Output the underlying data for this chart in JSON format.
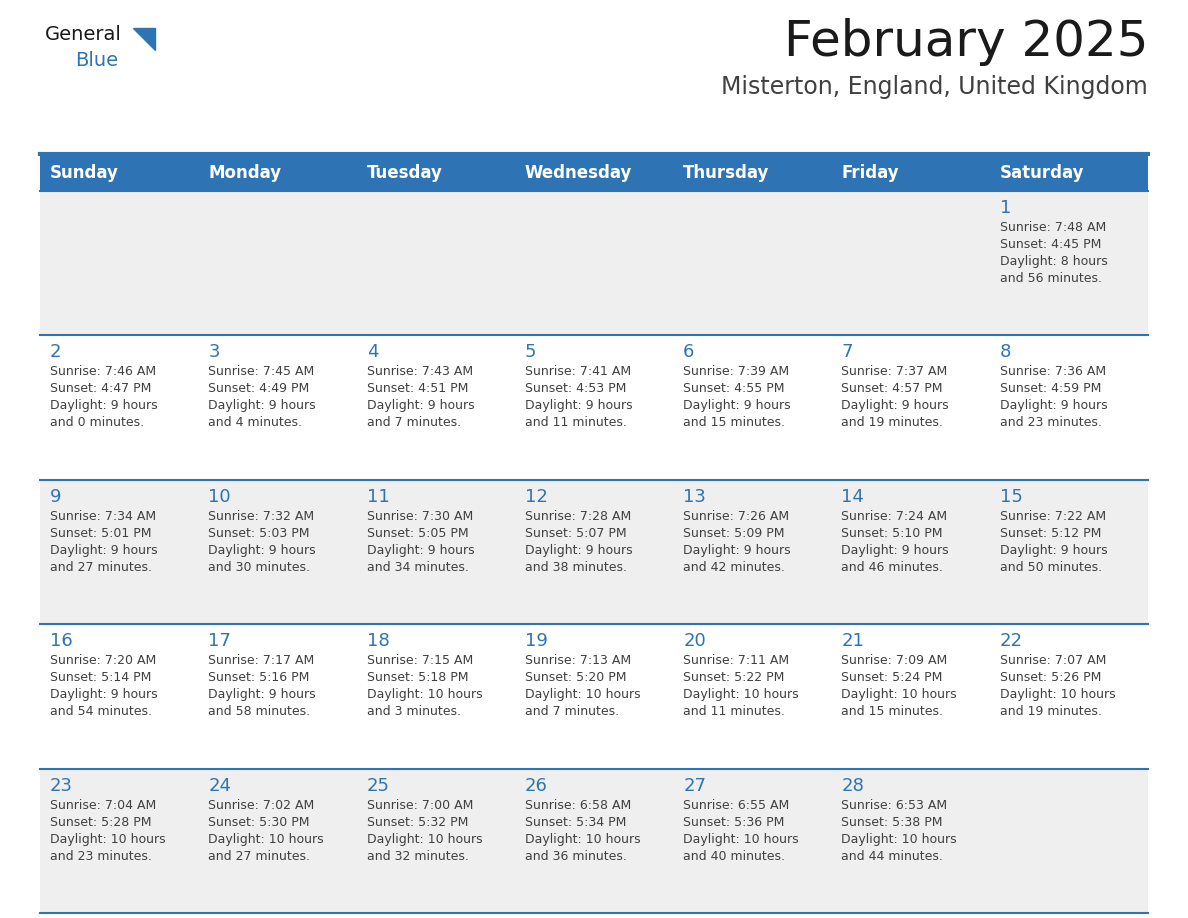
{
  "title": "February 2025",
  "subtitle": "Misterton, England, United Kingdom",
  "days_of_week": [
    "Sunday",
    "Monday",
    "Tuesday",
    "Wednesday",
    "Thursday",
    "Friday",
    "Saturday"
  ],
  "header_bg": "#2E74B5",
  "header_text": "#FFFFFF",
  "row_bg_odd": "#EFEFEF",
  "row_bg_even": "#FFFFFF",
  "cell_border": "#2E74B5",
  "day_number_color": "#2E74B5",
  "text_color": "#404040",
  "calendar_data": [
    [
      null,
      null,
      null,
      null,
      null,
      null,
      {
        "day": "1",
        "sunrise": "7:48 AM",
        "sunset": "4:45 PM",
        "daylight_h": "8 hours",
        "daylight_m": "56 minutes."
      }
    ],
    [
      {
        "day": "2",
        "sunrise": "7:46 AM",
        "sunset": "4:47 PM",
        "daylight_h": "9 hours",
        "daylight_m": "0 minutes."
      },
      {
        "day": "3",
        "sunrise": "7:45 AM",
        "sunset": "4:49 PM",
        "daylight_h": "9 hours",
        "daylight_m": "4 minutes."
      },
      {
        "day": "4",
        "sunrise": "7:43 AM",
        "sunset": "4:51 PM",
        "daylight_h": "9 hours",
        "daylight_m": "7 minutes."
      },
      {
        "day": "5",
        "sunrise": "7:41 AM",
        "sunset": "4:53 PM",
        "daylight_h": "9 hours",
        "daylight_m": "11 minutes."
      },
      {
        "day": "6",
        "sunrise": "7:39 AM",
        "sunset": "4:55 PM",
        "daylight_h": "9 hours",
        "daylight_m": "15 minutes."
      },
      {
        "day": "7",
        "sunrise": "7:37 AM",
        "sunset": "4:57 PM",
        "daylight_h": "9 hours",
        "daylight_m": "19 minutes."
      },
      {
        "day": "8",
        "sunrise": "7:36 AM",
        "sunset": "4:59 PM",
        "daylight_h": "9 hours",
        "daylight_m": "23 minutes."
      }
    ],
    [
      {
        "day": "9",
        "sunrise": "7:34 AM",
        "sunset": "5:01 PM",
        "daylight_h": "9 hours",
        "daylight_m": "27 minutes."
      },
      {
        "day": "10",
        "sunrise": "7:32 AM",
        "sunset": "5:03 PM",
        "daylight_h": "9 hours",
        "daylight_m": "30 minutes."
      },
      {
        "day": "11",
        "sunrise": "7:30 AM",
        "sunset": "5:05 PM",
        "daylight_h": "9 hours",
        "daylight_m": "34 minutes."
      },
      {
        "day": "12",
        "sunrise": "7:28 AM",
        "sunset": "5:07 PM",
        "daylight_h": "9 hours",
        "daylight_m": "38 minutes."
      },
      {
        "day": "13",
        "sunrise": "7:26 AM",
        "sunset": "5:09 PM",
        "daylight_h": "9 hours",
        "daylight_m": "42 minutes."
      },
      {
        "day": "14",
        "sunrise": "7:24 AM",
        "sunset": "5:10 PM",
        "daylight_h": "9 hours",
        "daylight_m": "46 minutes."
      },
      {
        "day": "15",
        "sunrise": "7:22 AM",
        "sunset": "5:12 PM",
        "daylight_h": "9 hours",
        "daylight_m": "50 minutes."
      }
    ],
    [
      {
        "day": "16",
        "sunrise": "7:20 AM",
        "sunset": "5:14 PM",
        "daylight_h": "9 hours",
        "daylight_m": "54 minutes."
      },
      {
        "day": "17",
        "sunrise": "7:17 AM",
        "sunset": "5:16 PM",
        "daylight_h": "9 hours",
        "daylight_m": "58 minutes."
      },
      {
        "day": "18",
        "sunrise": "7:15 AM",
        "sunset": "5:18 PM",
        "daylight_h": "10 hours",
        "daylight_m": "3 minutes."
      },
      {
        "day": "19",
        "sunrise": "7:13 AM",
        "sunset": "5:20 PM",
        "daylight_h": "10 hours",
        "daylight_m": "7 minutes."
      },
      {
        "day": "20",
        "sunrise": "7:11 AM",
        "sunset": "5:22 PM",
        "daylight_h": "10 hours",
        "daylight_m": "11 minutes."
      },
      {
        "day": "21",
        "sunrise": "7:09 AM",
        "sunset": "5:24 PM",
        "daylight_h": "10 hours",
        "daylight_m": "15 minutes."
      },
      {
        "day": "22",
        "sunrise": "7:07 AM",
        "sunset": "5:26 PM",
        "daylight_h": "10 hours",
        "daylight_m": "19 minutes."
      }
    ],
    [
      {
        "day": "23",
        "sunrise": "7:04 AM",
        "sunset": "5:28 PM",
        "daylight_h": "10 hours",
        "daylight_m": "23 minutes."
      },
      {
        "day": "24",
        "sunrise": "7:02 AM",
        "sunset": "5:30 PM",
        "daylight_h": "10 hours",
        "daylight_m": "27 minutes."
      },
      {
        "day": "25",
        "sunrise": "7:00 AM",
        "sunset": "5:32 PM",
        "daylight_h": "10 hours",
        "daylight_m": "32 minutes."
      },
      {
        "day": "26",
        "sunrise": "6:58 AM",
        "sunset": "5:34 PM",
        "daylight_h": "10 hours",
        "daylight_m": "36 minutes."
      },
      {
        "day": "27",
        "sunrise": "6:55 AM",
        "sunset": "5:36 PM",
        "daylight_h": "10 hours",
        "daylight_m": "40 minutes."
      },
      {
        "day": "28",
        "sunrise": "6:53 AM",
        "sunset": "5:38 PM",
        "daylight_h": "10 hours",
        "daylight_m": "44 minutes."
      },
      null
    ]
  ],
  "logo_general_color": "#1A1A1A",
  "logo_blue_color": "#2E74B5",
  "title_fontsize": 36,
  "subtitle_fontsize": 17,
  "header_fontsize": 12,
  "day_number_fontsize": 13,
  "cell_text_fontsize": 9
}
